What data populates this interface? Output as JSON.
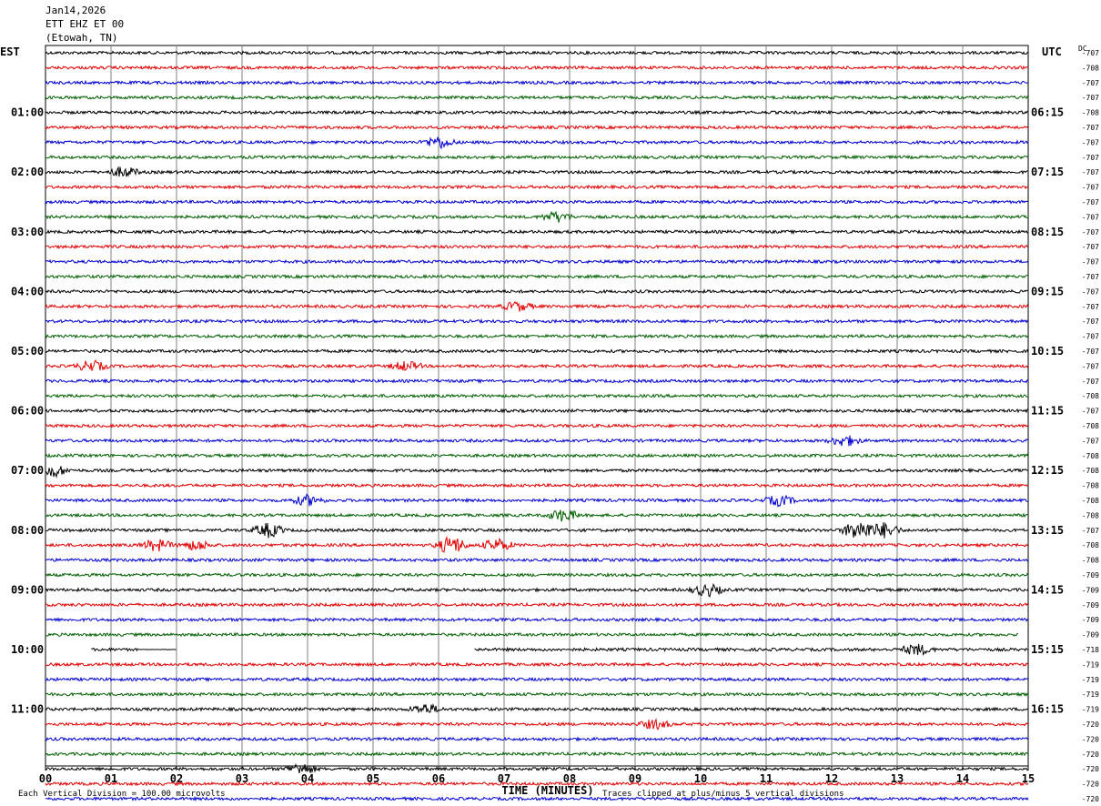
{
  "header": {
    "date": "Jan14,2026",
    "station": "ETT EHZ ET 00",
    "location": "(Etowah, TN)"
  },
  "colors": {
    "trace_cycle": [
      "#000000",
      "#e00000",
      "#0000d0",
      "#006000"
    ],
    "grid": "#808080"
  },
  "chart_data": {
    "type": "line",
    "title": "",
    "left_axis_label": "EST",
    "right_axis_label": "UTC",
    "dc_label": "DC",
    "xlabel": "TIME (MINUTES)",
    "xlim": [
      0,
      15
    ],
    "x_ticks": [
      "00",
      "01",
      "02",
      "03",
      "04",
      "05",
      "06",
      "07",
      "08",
      "09",
      "10",
      "11",
      "12",
      "13",
      "14",
      "15"
    ],
    "left_time_labels": [
      "01:00",
      "02:00",
      "03:00",
      "04:00",
      "05:00",
      "06:00",
      "07:00",
      "08:00",
      "09:00",
      "10:00",
      "11:00"
    ],
    "right_time_labels": [
      "06:15",
      "07:15",
      "08:15",
      "09:15",
      "10:15",
      "11:15",
      "12:15",
      "13:15",
      "14:15",
      "15:15",
      "16:15"
    ],
    "dc_offsets": [
      "-707",
      "-708",
      "-707",
      "-707",
      "-708",
      "-707",
      "-707",
      "-707",
      "-707",
      "-707",
      "-707",
      "-707",
      "-707",
      "-707",
      "-707",
      "-707",
      "-707",
      "-707",
      "-707",
      "-707",
      "-707",
      "-707",
      "-707",
      "-708",
      "-707",
      "-708",
      "-707",
      "-708",
      "-708",
      "-708",
      "-708",
      "-708",
      "-707",
      "-708",
      "-708",
      "-709",
      "-709",
      "-709",
      "-709",
      "-709",
      "-718",
      "-719",
      "-719",
      "-719",
      "-719",
      "-720",
      "-720",
      "-720",
      "-720",
      "-720",
      "-720",
      "-721"
    ],
    "footer_left": "Each Vertical Division =  100.00 microvolts",
    "footer_right": "Traces clipped at plus/minus 5 vertical divisions",
    "data_gap": {
      "trace": 40,
      "start_min": 0,
      "end_min": 6.55,
      "partial_start_min": 0.7,
      "partial_end_min": 2.0
    },
    "short_trace": {
      "trace": 39,
      "end_min": 14.85
    },
    "events": [
      {
        "trace": 8,
        "minute": 1.2,
        "amp": 1.2
      },
      {
        "trace": 6,
        "minute": 6.0,
        "amp": 1.4
      },
      {
        "trace": 11,
        "minute": 7.8,
        "amp": 1.2
      },
      {
        "trace": 17,
        "minute": 7.2,
        "amp": 1.1
      },
      {
        "trace": 21,
        "minute": 0.7,
        "amp": 1.3
      },
      {
        "trace": 21,
        "minute": 5.5,
        "amp": 1.1
      },
      {
        "trace": 26,
        "minute": 12.2,
        "amp": 1.3
      },
      {
        "trace": 28,
        "minute": 0.1,
        "amp": 1.6
      },
      {
        "trace": 30,
        "minute": 4.0,
        "amp": 1.2
      },
      {
        "trace": 30,
        "minute": 11.2,
        "amp": 1.2
      },
      {
        "trace": 31,
        "minute": 7.9,
        "amp": 1.5
      },
      {
        "trace": 32,
        "minute": 3.4,
        "amp": 1.7
      },
      {
        "trace": 32,
        "minute": 12.4,
        "amp": 2.4
      },
      {
        "trace": 32,
        "minute": 12.8,
        "amp": 1.8
      },
      {
        "trace": 33,
        "minute": 1.7,
        "amp": 1.4
      },
      {
        "trace": 33,
        "minute": 2.3,
        "amp": 1.2
      },
      {
        "trace": 33,
        "minute": 6.2,
        "amp": 2.2
      },
      {
        "trace": 33,
        "minute": 6.9,
        "amp": 1.5
      },
      {
        "trace": 36,
        "minute": 10.1,
        "amp": 1.5
      },
      {
        "trace": 40,
        "minute": 13.3,
        "amp": 1.3
      },
      {
        "trace": 44,
        "minute": 5.8,
        "amp": 1.2
      },
      {
        "trace": 45,
        "minute": 9.3,
        "amp": 1.1
      },
      {
        "trace": 48,
        "minute": 3.9,
        "amp": 1.3
      }
    ]
  }
}
